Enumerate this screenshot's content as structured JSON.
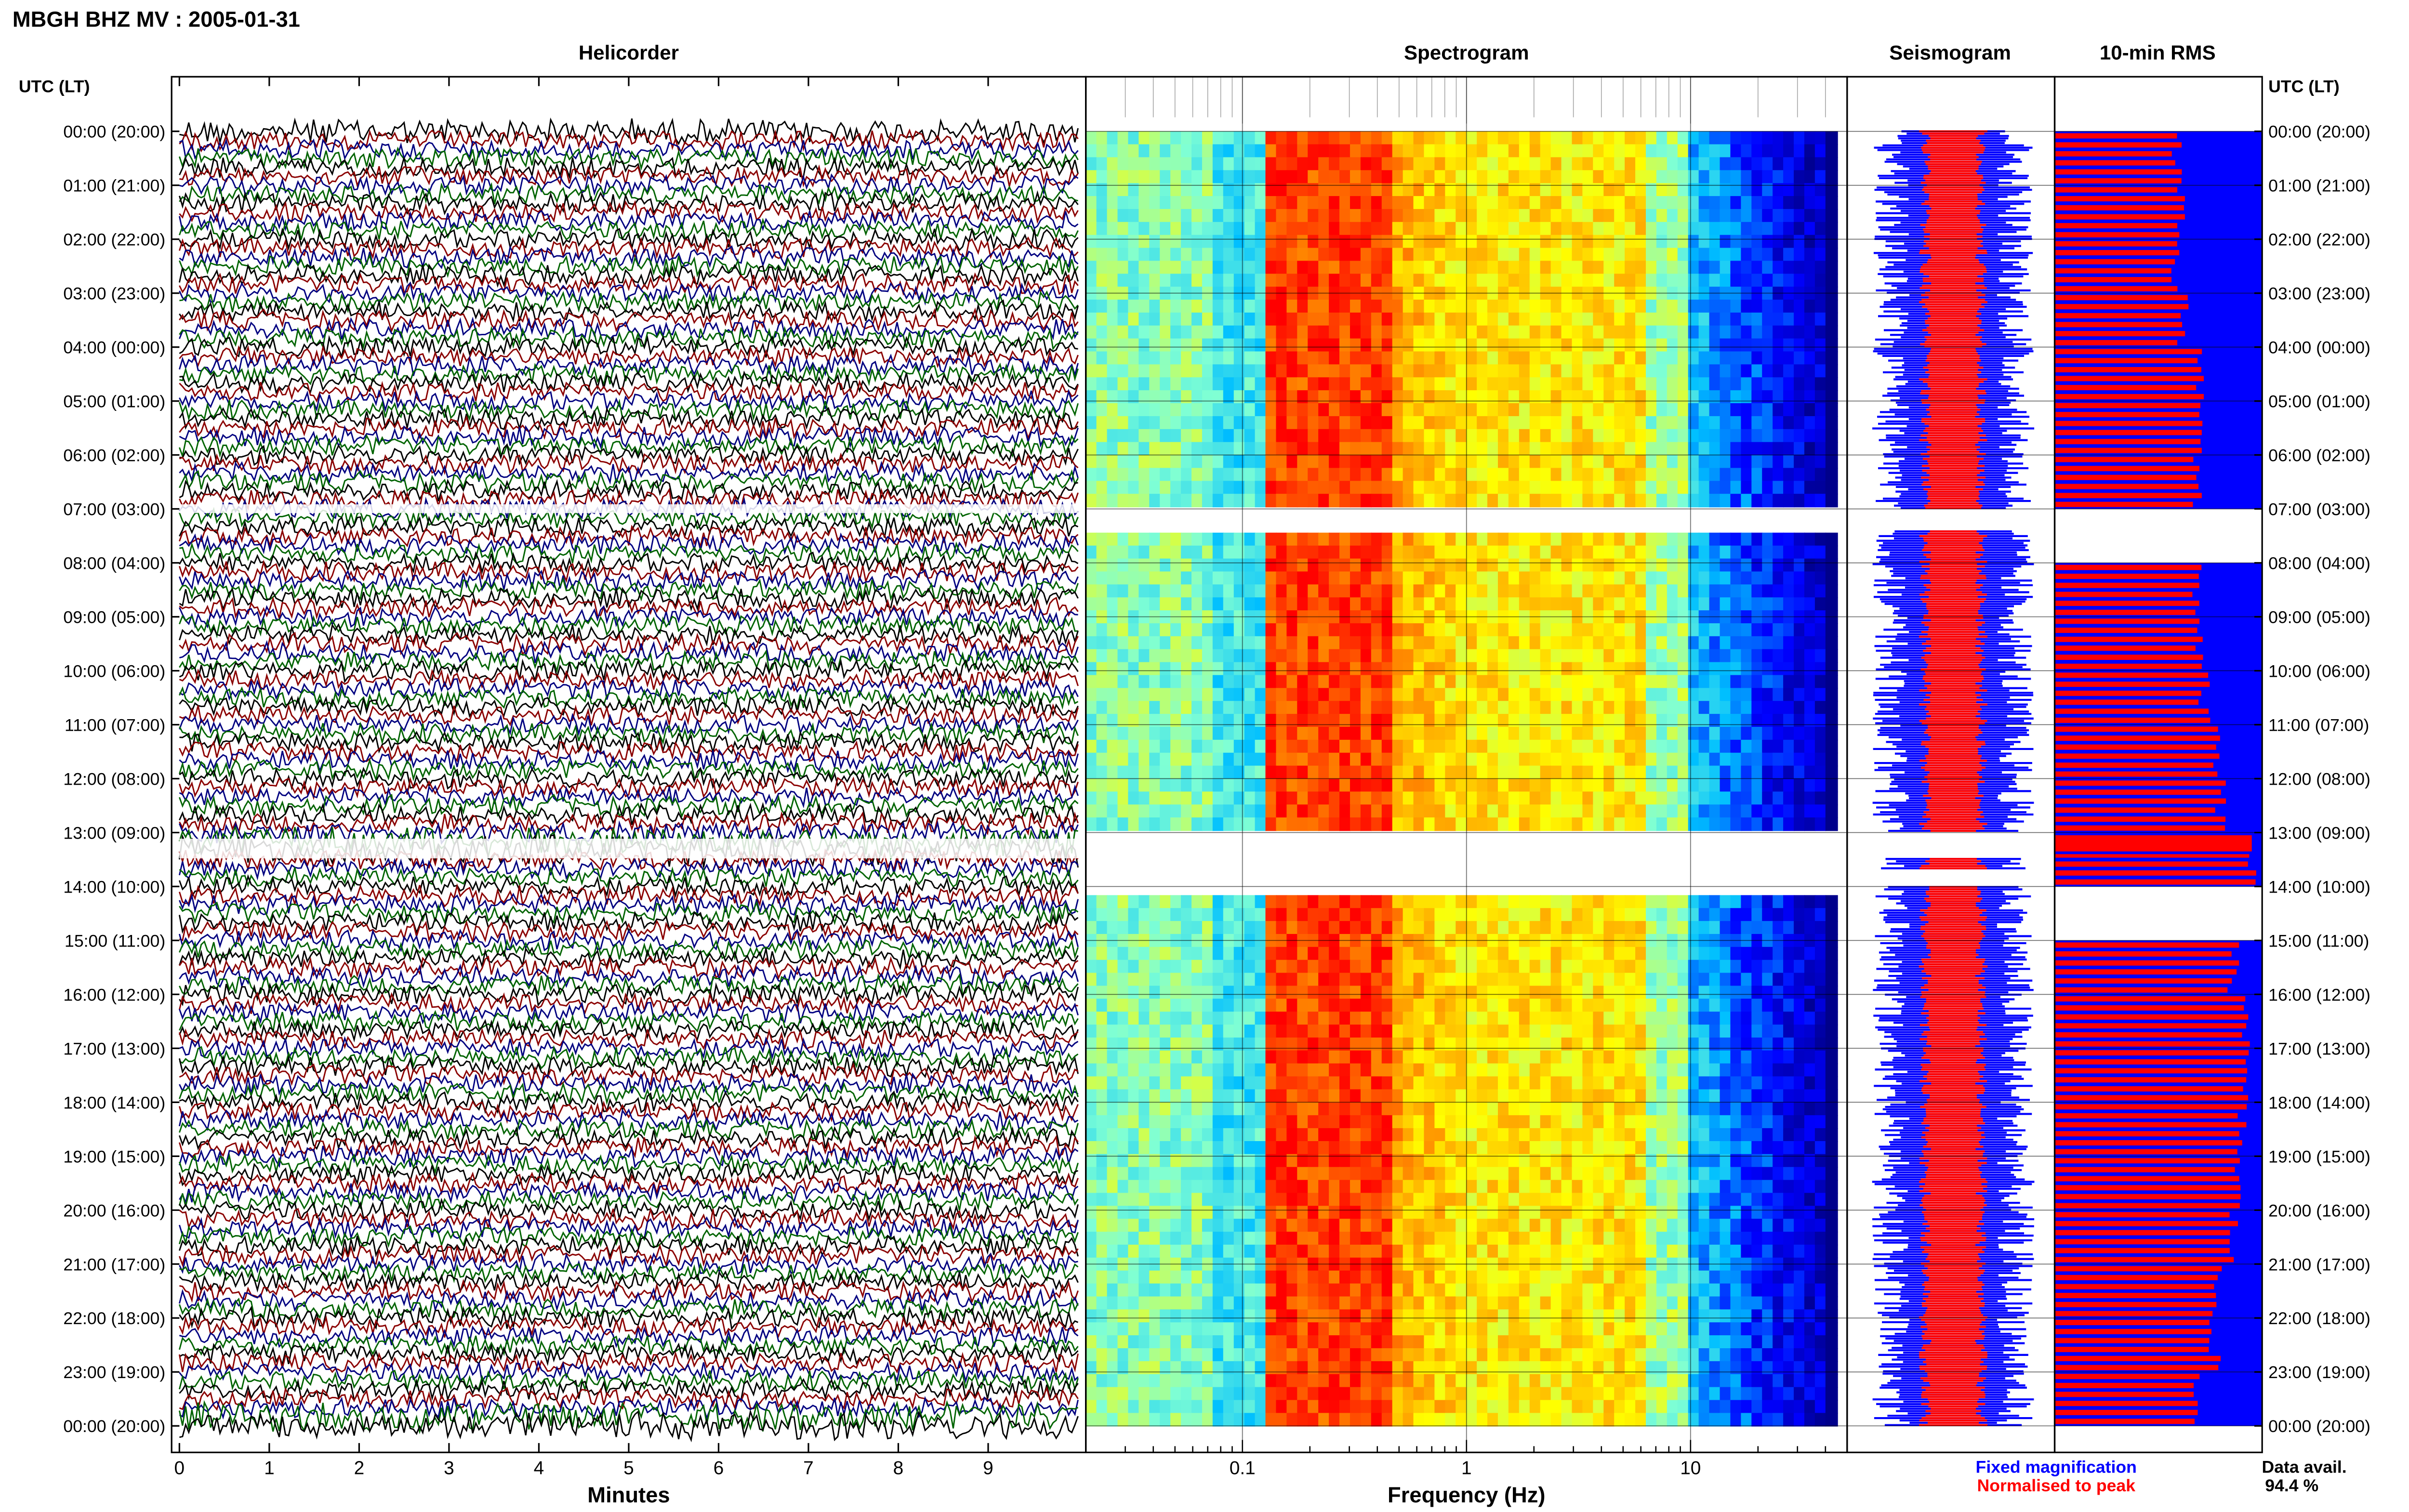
{
  "figure": {
    "title": "MBGH BHZ MV : 2005-01-31",
    "panel_titles": {
      "helicorder": "Helicorder",
      "spectrogram": "Spectrogram",
      "seismogram": "Seismogram",
      "rms": "10-min RMS"
    },
    "left_axis_label": "UTC (LT)",
    "right_axis_label": "UTC (LT)",
    "legend": {
      "fixed": "Fixed magnification",
      "normalised": "Normalised to peak",
      "fixed_color": "#0000ff",
      "normalised_color": "#ff0000"
    },
    "data_avail_label": "Data avail.",
    "data_avail_value": "94.4 %"
  },
  "chart_data": [
    {
      "type": "line",
      "panel": "Helicorder",
      "xlabel": "Minutes",
      "x_ticks": [
        "0",
        "1",
        "2",
        "3",
        "4",
        "5",
        "6",
        "7",
        "8",
        "9"
      ],
      "xlim": [
        0,
        10
      ],
      "y_ticks": [
        "00:00 (20:00)",
        "01:00 (21:00)",
        "02:00 (22:00)",
        "03:00 (23:00)",
        "04:00 (00:00)",
        "05:00 (01:00)",
        "06:00 (02:00)",
        "07:00 (03:00)",
        "08:00 (04:00)",
        "09:00 (05:00)",
        "10:00 (06:00)",
        "11:00 (07:00)",
        "12:00 (08:00)",
        "13:00 (09:00)",
        "14:00 (10:00)",
        "15:00 (11:00)",
        "16:00 (12:00)",
        "17:00 (13:00)",
        "18:00 (14:00)",
        "19:00 (15:00)",
        "20:00 (16:00)",
        "21:00 (17:00)",
        "22:00 (18:00)",
        "23:00 (19:00)",
        "00:00 (20:00)"
      ],
      "trace_colors": [
        "#000000",
        "#8b0000",
        "#000080",
        "#006400"
      ],
      "gaps_utc_hours": [
        [
          7.0,
          7.05
        ],
        [
          13.2,
          13.45
        ]
      ]
    },
    {
      "type": "heatmap",
      "panel": "Spectrogram",
      "xlabel": "Frequency (Hz)",
      "x_scale": "log",
      "xlim": [
        0.02,
        50
      ],
      "x_ticks": [
        "0.1",
        "1",
        "10"
      ],
      "data_gaps_utc_hours": [
        [
          7.0,
          7.4
        ],
        [
          13.0,
          13.45
        ],
        [
          13.7,
          14.0
        ]
      ],
      "peak_band_hz": [
        0.14,
        0.4
      ],
      "colormap": [
        "#00008b",
        "#0000ff",
        "#00bfff",
        "#7fffd4",
        "#ffff00",
        "#ff8c00",
        "#ff0000"
      ]
    },
    {
      "type": "area",
      "panel": "Seismogram",
      "series": [
        {
          "name": "Fixed magnification",
          "color": "#0000ff"
        },
        {
          "name": "Normalised to peak",
          "color": "#ff0000"
        }
      ]
    },
    {
      "type": "bar",
      "panel": "10-min RMS",
      "orientation": "horizontal",
      "series": [
        {
          "name": "Fixed magnification",
          "color": "#0000ff"
        },
        {
          "name": "Normalised to peak",
          "color": "#ff0000"
        }
      ],
      "rms_hourly_fixed": [
        0.61,
        0.62,
        0.6,
        0.63,
        0.72,
        0.74,
        0.71,
        null,
        0.7,
        0.72,
        0.74,
        0.8,
        0.82,
        0.9,
        null,
        0.88,
        0.95,
        0.93,
        0.92,
        0.9,
        0.88,
        0.8,
        0.79,
        0.7
      ],
      "rms_hourly_normalised": [
        0.59,
        0.6,
        0.58,
        0.62,
        0.7,
        0.72,
        0.68,
        null,
        0.69,
        0.7,
        0.72,
        0.78,
        0.8,
        0.95,
        null,
        0.86,
        0.93,
        0.91,
        0.9,
        0.88,
        0.86,
        0.78,
        0.77,
        0.68
      ]
    }
  ]
}
